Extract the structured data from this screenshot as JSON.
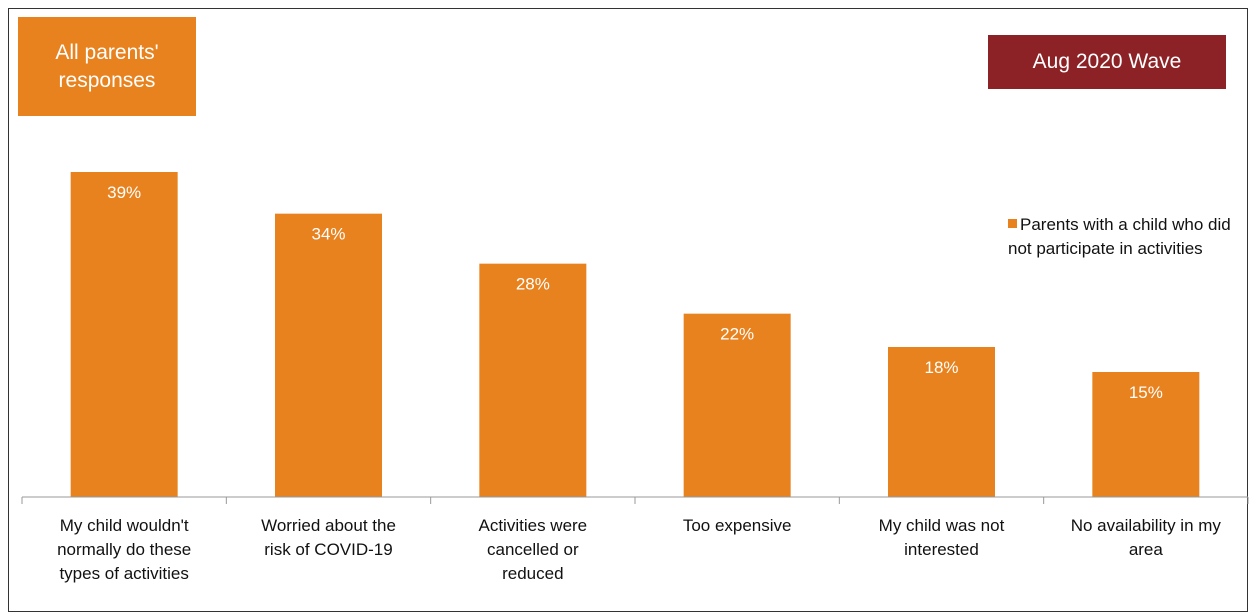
{
  "badges": {
    "left": "All parents'\nresponses",
    "right": "Aug 2020 Wave"
  },
  "colors": {
    "bar": "#e8821e",
    "badge_left": "#e8821e",
    "badge_right": "#8c2226"
  },
  "chart_data": {
    "type": "bar",
    "categories": [
      [
        "My child wouldn't",
        "normally do these",
        "types of activities"
      ],
      [
        "Worried about the",
        "risk of COVID-19"
      ],
      [
        "Activities were",
        "cancelled or",
        "reduced"
      ],
      [
        "Too expensive"
      ],
      [
        "My child was not",
        "interested"
      ],
      [
        "No availability in my",
        "area"
      ]
    ],
    "series": [
      {
        "name": "Parents with a child who did not participate in activities",
        "values": [
          39,
          34,
          28,
          22,
          18,
          15
        ]
      }
    ],
    "data_labels": [
      "39%",
      "34%",
      "28%",
      "22%",
      "18%",
      "15%"
    ],
    "ylim": [
      0,
      39
    ],
    "grid": false,
    "legend_position": "right"
  }
}
